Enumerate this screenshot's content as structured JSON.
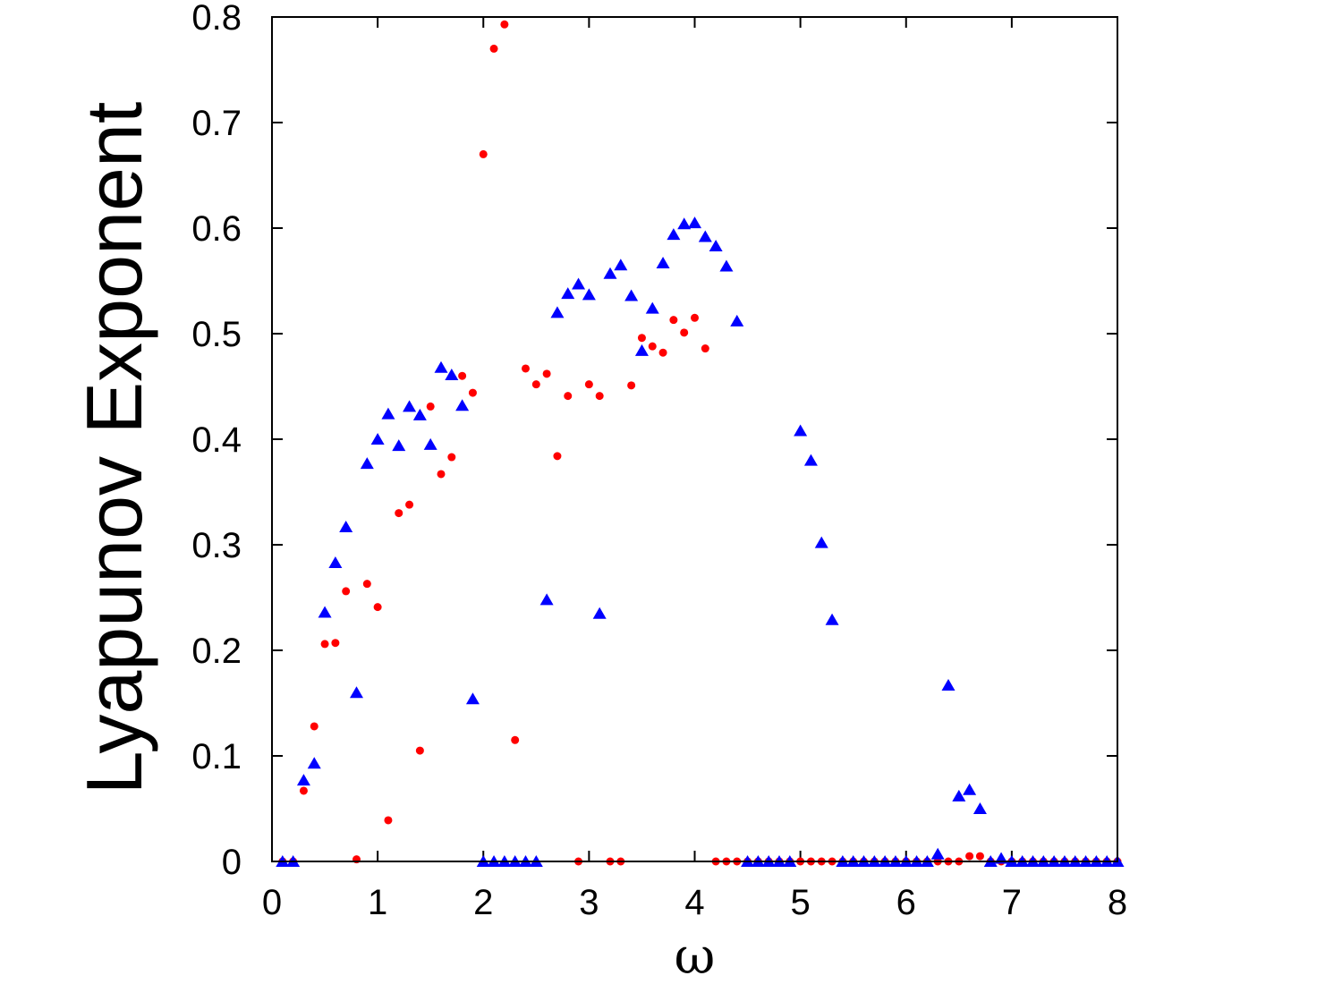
{
  "chart_data": {
    "type": "scatter",
    "title": "",
    "xlabel": "ω",
    "ylabel": "Lyapunov Exponent",
    "xlim": [
      0,
      8
    ],
    "ylim": [
      0,
      0.8
    ],
    "xticks": [
      "0",
      "1",
      "2",
      "3",
      "4",
      "5",
      "6",
      "7",
      "8"
    ],
    "yticks": [
      "0",
      "0.1",
      "0.2",
      "0.3",
      "0.4",
      "0.5",
      "0.6",
      "0.7",
      "0.8"
    ],
    "grid": false,
    "legend": "none",
    "series": [
      {
        "marker": "circle",
        "color": "#ff0000",
        "points": [
          [
            0.1,
            0
          ],
          [
            0.2,
            0
          ],
          [
            0.3,
            0.067
          ],
          [
            0.4,
            0.128
          ],
          [
            0.5,
            0.206
          ],
          [
            0.6,
            0.207
          ],
          [
            0.7,
            0.256
          ],
          [
            0.8,
            0.002
          ],
          [
            0.9,
            0.263
          ],
          [
            1.0,
            0.241
          ],
          [
            1.1,
            0.039
          ],
          [
            1.2,
            0.33
          ],
          [
            1.3,
            0.338
          ],
          [
            1.4,
            0.105
          ],
          [
            1.5,
            0.431
          ],
          [
            1.6,
            0.367
          ],
          [
            1.7,
            0.383
          ],
          [
            1.8,
            0.46
          ],
          [
            1.9,
            0.444
          ],
          [
            2.0,
            0.67
          ],
          [
            2.1,
            0.77
          ],
          [
            2.2,
            0.793
          ],
          [
            2.3,
            0.115
          ],
          [
            2.4,
            0.467
          ],
          [
            2.5,
            0.452
          ],
          [
            2.6,
            0.462
          ],
          [
            2.7,
            0.384
          ],
          [
            2.8,
            0.441
          ],
          [
            2.9,
            0
          ],
          [
            3.0,
            0.452
          ],
          [
            3.1,
            0.441
          ],
          [
            3.2,
            0
          ],
          [
            3.3,
            0
          ],
          [
            3.4,
            0.451
          ],
          [
            3.5,
            0.496
          ],
          [
            3.6,
            0.488
          ],
          [
            3.7,
            0.482
          ],
          [
            3.8,
            0.513
          ],
          [
            3.9,
            0.501
          ],
          [
            4.0,
            0.515
          ],
          [
            4.1,
            0.486
          ],
          [
            4.2,
            0
          ],
          [
            4.3,
            0
          ],
          [
            4.4,
            0
          ],
          [
            4.5,
            0
          ],
          [
            4.6,
            0
          ],
          [
            4.7,
            0
          ],
          [
            4.8,
            0
          ],
          [
            4.9,
            0
          ],
          [
            5.0,
            0
          ],
          [
            5.1,
            0
          ],
          [
            5.2,
            0
          ],
          [
            5.3,
            0
          ],
          [
            5.4,
            0
          ],
          [
            5.5,
            0
          ],
          [
            5.6,
            0
          ],
          [
            5.7,
            0
          ],
          [
            5.8,
            0
          ],
          [
            5.9,
            0
          ],
          [
            6.0,
            0
          ],
          [
            6.1,
            0
          ],
          [
            6.2,
            0
          ],
          [
            6.3,
            0
          ],
          [
            6.4,
            0
          ],
          [
            6.5,
            0
          ],
          [
            6.6,
            0.005
          ],
          [
            6.7,
            0.005
          ],
          [
            6.8,
            0
          ],
          [
            6.9,
            0
          ],
          [
            7.0,
            0
          ],
          [
            7.1,
            0
          ],
          [
            7.2,
            0
          ],
          [
            7.3,
            0
          ],
          [
            7.4,
            0
          ],
          [
            7.5,
            0
          ],
          [
            7.6,
            0
          ],
          [
            7.7,
            0
          ],
          [
            7.8,
            0
          ],
          [
            7.9,
            0
          ],
          [
            8.0,
            0
          ]
        ]
      },
      {
        "marker": "triangle",
        "color": "#0000ff",
        "points": [
          [
            0.1,
            0
          ],
          [
            0.2,
            0
          ],
          [
            0.3,
            0.077
          ],
          [
            0.4,
            0.093
          ],
          [
            0.5,
            0.236
          ],
          [
            0.6,
            0.283
          ],
          [
            0.7,
            0.317
          ],
          [
            0.8,
            0.16
          ],
          [
            0.9,
            0.377
          ],
          [
            1.0,
            0.4
          ],
          [
            1.1,
            0.424
          ],
          [
            1.2,
            0.394
          ],
          [
            1.3,
            0.431
          ],
          [
            1.4,
            0.423
          ],
          [
            1.5,
            0.395
          ],
          [
            1.6,
            0.468
          ],
          [
            1.7,
            0.461
          ],
          [
            1.8,
            0.432
          ],
          [
            1.9,
            0.154
          ],
          [
            2.0,
            0
          ],
          [
            2.1,
            0
          ],
          [
            2.2,
            0
          ],
          [
            2.3,
            0
          ],
          [
            2.4,
            0
          ],
          [
            2.5,
            0
          ],
          [
            2.6,
            0.248
          ],
          [
            2.7,
            0.52
          ],
          [
            2.8,
            0.538
          ],
          [
            2.9,
            0.547
          ],
          [
            3.0,
            0.537
          ],
          [
            3.1,
            0.235
          ],
          [
            3.2,
            0.557
          ],
          [
            3.3,
            0.565
          ],
          [
            3.4,
            0.536
          ],
          [
            3.5,
            0.484
          ],
          [
            3.6,
            0.524
          ],
          [
            3.7,
            0.567
          ],
          [
            3.8,
            0.594
          ],
          [
            3.9,
            0.604
          ],
          [
            4.0,
            0.605
          ],
          [
            4.1,
            0.592
          ],
          [
            4.2,
            0.583
          ],
          [
            4.3,
            0.564
          ],
          [
            4.4,
            0.512
          ],
          [
            4.5,
            0
          ],
          [
            4.6,
            0
          ],
          [
            4.7,
            0
          ],
          [
            4.8,
            0
          ],
          [
            4.9,
            0
          ],
          [
            5.0,
            0.408
          ],
          [
            5.1,
            0.38
          ],
          [
            5.2,
            0.302
          ],
          [
            5.3,
            0.229
          ],
          [
            5.4,
            0
          ],
          [
            5.5,
            0
          ],
          [
            5.6,
            0
          ],
          [
            5.7,
            0
          ],
          [
            5.8,
            0
          ],
          [
            5.9,
            0
          ],
          [
            6.0,
            0
          ],
          [
            6.1,
            0
          ],
          [
            6.2,
            0
          ],
          [
            6.3,
            0.007
          ],
          [
            6.4,
            0.167
          ],
          [
            6.5,
            0.062
          ],
          [
            6.6,
            0.068
          ],
          [
            6.7,
            0.05
          ],
          [
            6.8,
            0
          ],
          [
            6.9,
            0.003
          ],
          [
            7.0,
            0
          ],
          [
            7.1,
            0
          ],
          [
            7.2,
            0
          ],
          [
            7.3,
            0
          ],
          [
            7.4,
            0
          ],
          [
            7.5,
            0
          ],
          [
            7.6,
            0
          ],
          [
            7.7,
            0
          ],
          [
            7.8,
            0
          ],
          [
            7.9,
            0
          ],
          [
            8.0,
            0
          ]
        ]
      }
    ]
  }
}
